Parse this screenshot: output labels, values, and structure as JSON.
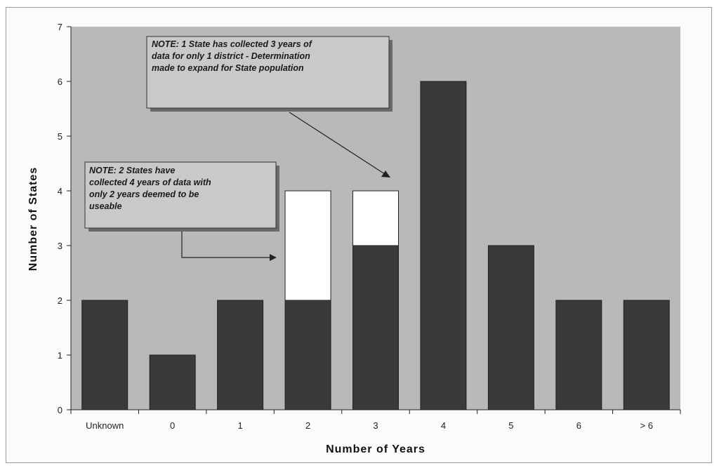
{
  "chart_data": {
    "type": "bar",
    "stacked": true,
    "categories": [
      "Unknown",
      "0",
      "1",
      "2",
      "3",
      "4",
      "5",
      "6",
      "> 6"
    ],
    "series": [
      {
        "values": [
          2,
          1,
          2,
          2,
          3,
          6,
          3,
          2,
          2
        ],
        "color": "#3a3a3a"
      },
      {
        "values": [
          0,
          0,
          0,
          2,
          1,
          0,
          0,
          0,
          0
        ],
        "color": "#ffffff"
      }
    ],
    "title": "",
    "xlabel": "Number of Years",
    "ylabel": "Number of States",
    "ylim": [
      0,
      7
    ],
    "yticks": [
      0,
      1,
      2,
      3,
      4,
      5,
      6,
      7
    ],
    "grid": false,
    "plot_background": "#b9b9b9",
    "annotations": [
      {
        "lines": [
          "NOTE: 1 State has collected 3 years of",
          "data for only 1 district - Determination",
          "made to expand for State population"
        ],
        "points_to_category": "3"
      },
      {
        "lines": [
          "NOTE: 2 States have",
          "collected 4 years of data with",
          "only 2 years deemed to be",
          "useable"
        ],
        "points_to_category": "2"
      }
    ]
  }
}
